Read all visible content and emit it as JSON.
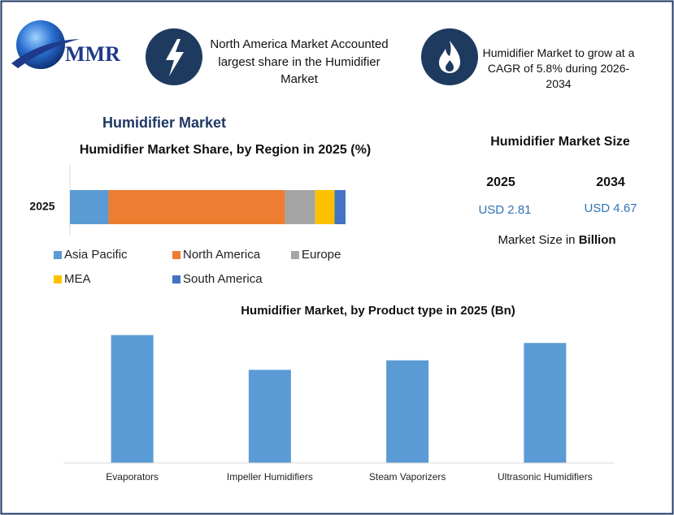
{
  "header": {
    "logo": "MMR",
    "highlights": [
      "North America Market Accounted largest share in the Humidifier Market",
      "Humidifier Market to grow at a CAGR of 5.8% during 2026-2034"
    ]
  },
  "section_title": "Humidifier Market",
  "market_size": {
    "title": "Humidifier Market Size",
    "columns": [
      {
        "year": "2025",
        "value": "USD 2.81"
      },
      {
        "year": "2034",
        "value": "USD 4.67"
      }
    ],
    "unit_note": "Market Size in",
    "unit": "Billion"
  },
  "chart_data": [
    {
      "type": "stacked_bar",
      "title": "Humidifier Market Share, by Region in 2025 (%)",
      "categories": [
        "2025"
      ],
      "xlim": [
        0,
        100
      ],
      "legend": "bottom",
      "series": [
        {
          "name": "Asia Pacific",
          "color": "#5b9bd5",
          "values": [
            14
          ]
        },
        {
          "name": "North America",
          "color": "#ed7d31",
          "values": [
            64
          ]
        },
        {
          "name": "Europe",
          "color": "#a5a5a5",
          "values": [
            11
          ]
        },
        {
          "name": "MEA",
          "color": "#ffc000",
          "values": [
            7
          ]
        },
        {
          "name": "South America",
          "color": "#4472c4",
          "values": [
            4
          ]
        }
      ]
    },
    {
      "type": "bar",
      "title": "Humidifier Market, by Product type in 2025 (Bn)",
      "categories": [
        "Evaporators",
        "Impeller Humidifiers",
        "Steam Vaporizers",
        "Ultrasonic Humidifiers"
      ],
      "values": [
        0.81,
        0.59,
        0.65,
        0.76
      ],
      "color": "#5b9bd5",
      "ylim": [
        0,
        0.9
      ]
    }
  ]
}
